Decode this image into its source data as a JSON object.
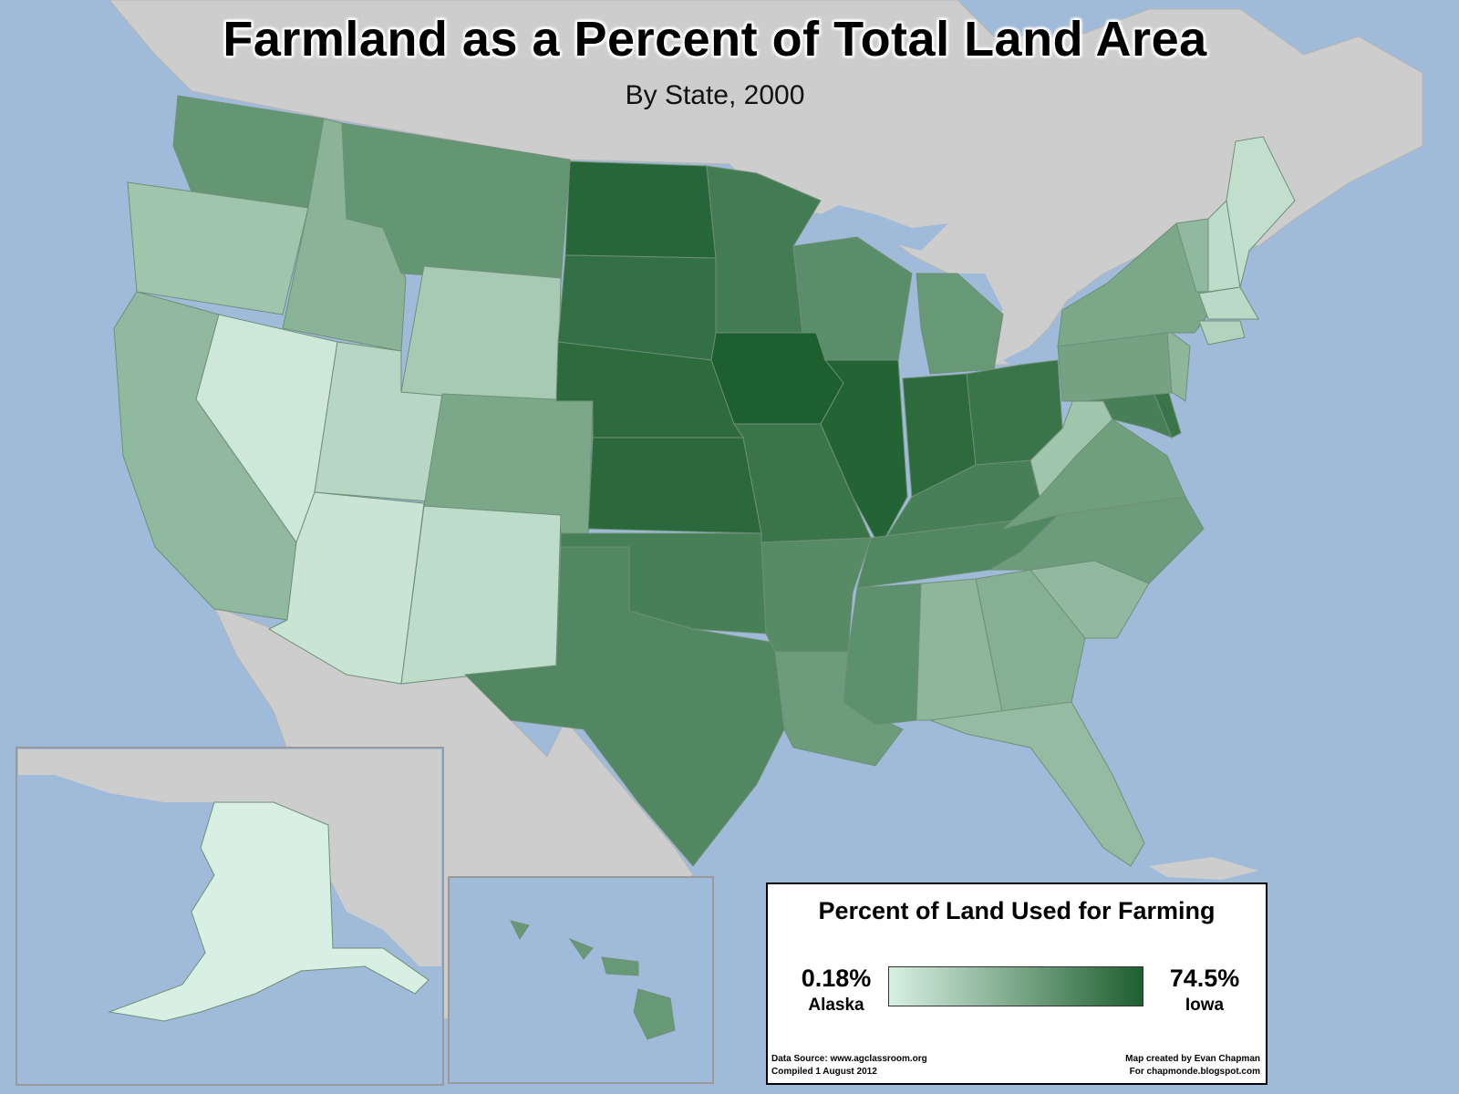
{
  "title": "Farmland as a Percent of Total Land Area",
  "subtitle": "By State, 2000",
  "legend": {
    "title": "Percent of Land Used for Farming",
    "min_value": "0.18%",
    "min_state": "Alaska",
    "max_value": "74.5%",
    "max_state": "Iowa",
    "color_low": "#d8f0e3",
    "color_high": "#1e5f2f",
    "source": "Data Source: www.agclassroom.org",
    "compiled": "Compiled 1 August 2012",
    "credit": "Map created by Evan Chapman",
    "blog": "For chapmonde.blogspot.com"
  },
  "colors": {
    "water": "#9fbbd9",
    "land_other": "#cdcdcd",
    "border": "#6f8f78"
  },
  "states": [
    {
      "name": "Washington",
      "shade": 0.62
    },
    {
      "name": "Oregon",
      "shade": 0.3
    },
    {
      "name": "California",
      "shade": 0.38
    },
    {
      "name": "Idaho",
      "shade": 0.42
    },
    {
      "name": "Nevada",
      "shade": 0.06
    },
    {
      "name": "Utah",
      "shade": 0.18
    },
    {
      "name": "Arizona",
      "shade": 0.08
    },
    {
      "name": "Montana",
      "shade": 0.62
    },
    {
      "name": "Wyoming",
      "shade": 0.26
    },
    {
      "name": "Colorado",
      "shade": 0.5
    },
    {
      "name": "New Mexico",
      "shade": 0.14
    },
    {
      "name": "North Dakota",
      "shade": 0.95
    },
    {
      "name": "South Dakota",
      "shade": 0.88
    },
    {
      "name": "Nebraska",
      "shade": 0.92
    },
    {
      "name": "Kansas",
      "shade": 0.93
    },
    {
      "name": "Oklahoma",
      "shade": 0.78
    },
    {
      "name": "Texas",
      "shade": 0.72
    },
    {
      "name": "Minnesota",
      "shade": 0.8
    },
    {
      "name": "Iowa",
      "shade": 1.0
    },
    {
      "name": "Missouri",
      "shade": 0.85
    },
    {
      "name": "Arkansas",
      "shade": 0.7
    },
    {
      "name": "Louisiana",
      "shade": 0.58
    },
    {
      "name": "Wisconsin",
      "shade": 0.68
    },
    {
      "name": "Illinois",
      "shade": 0.97
    },
    {
      "name": "Michigan",
      "shade": 0.6
    },
    {
      "name": "Indiana",
      "shade": 0.92
    },
    {
      "name": "Ohio",
      "shade": 0.85
    },
    {
      "name": "Kentucky",
      "shade": 0.78
    },
    {
      "name": "Tennessee",
      "shade": 0.72
    },
    {
      "name": "Mississippi",
      "shade": 0.66
    },
    {
      "name": "Alabama",
      "shade": 0.4
    },
    {
      "name": "Georgia",
      "shade": 0.44
    },
    {
      "name": "Florida",
      "shade": 0.36
    },
    {
      "name": "South Carolina",
      "shade": 0.38
    },
    {
      "name": "North Carolina",
      "shade": 0.58
    },
    {
      "name": "Virginia",
      "shade": 0.56
    },
    {
      "name": "West Virginia",
      "shade": 0.3
    },
    {
      "name": "Maryland",
      "shade": 0.78
    },
    {
      "name": "Delaware",
      "shade": 0.85
    },
    {
      "name": "Pennsylvania",
      "shade": 0.54
    },
    {
      "name": "New Jersey",
      "shade": 0.4
    },
    {
      "name": "New York",
      "shade": 0.5
    },
    {
      "name": "Vermont",
      "shade": 0.38
    },
    {
      "name": "New Hampshire",
      "shade": 0.14
    },
    {
      "name": "Maine",
      "shade": 0.12
    },
    {
      "name": "Massachusetts",
      "shade": 0.16
    },
    {
      "name": "Connecticut",
      "shade": 0.2
    },
    {
      "name": "Alaska",
      "shade": 0.0
    },
    {
      "name": "Hawaii",
      "shade": 0.6
    }
  ]
}
